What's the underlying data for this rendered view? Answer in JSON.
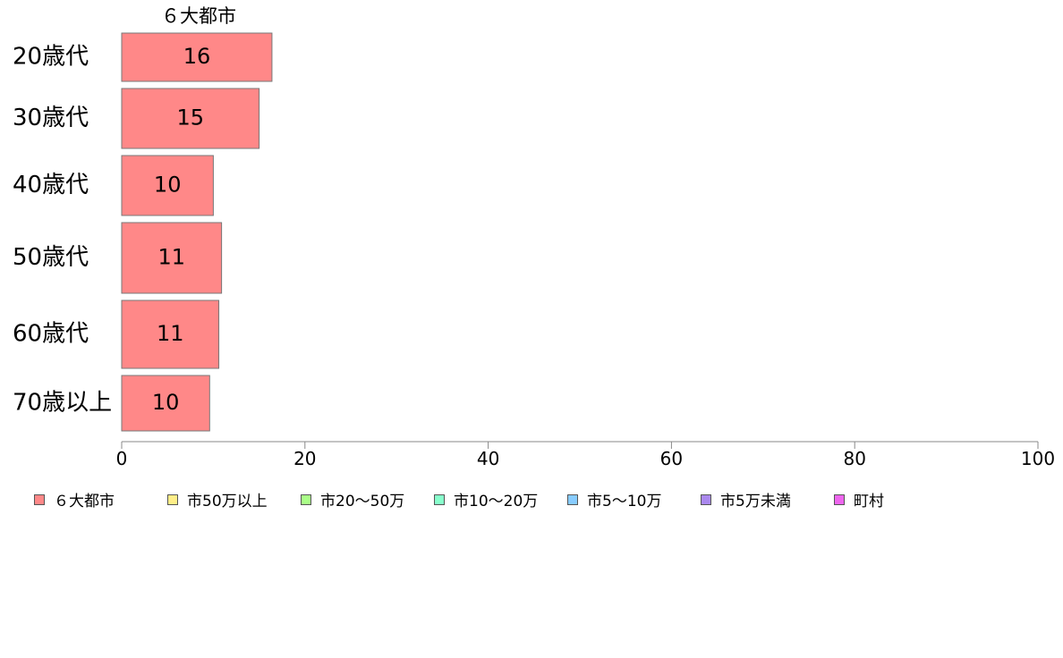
{
  "chart_data": {
    "type": "bar",
    "orientation": "horizontal",
    "column_title": "６大都市",
    "categories": [
      "20歳代",
      "30歳代",
      "40歳代",
      "50歳代",
      "60歳代",
      "70歳以上"
    ],
    "series": [
      {
        "name": "６大都市",
        "values": [
          16.4,
          15.0,
          10.0,
          10.9,
          10.6,
          9.6
        ],
        "labels": [
          "16",
          "15",
          "10",
          "11",
          "11",
          "10"
        ],
        "color": "#ff8888"
      }
    ],
    "xlim": [
      0,
      100
    ],
    "xticks": [
      0,
      20,
      40,
      60,
      80,
      100
    ],
    "grid": false,
    "legend_position": "bottom",
    "legend": [
      {
        "label": "６大都市",
        "color": "#ff8888"
      },
      {
        "label": "市50万以上",
        "color": "#ffee88"
      },
      {
        "label": "市20～50万",
        "color": "#aaff88"
      },
      {
        "label": "市10～20万",
        "color": "#88ffcc"
      },
      {
        "label": "市5～10万",
        "color": "#88ccff"
      },
      {
        "label": "市5万未満",
        "color": "#aa88ee"
      },
      {
        "label": "町村",
        "color": "#ee66ee"
      }
    ]
  }
}
